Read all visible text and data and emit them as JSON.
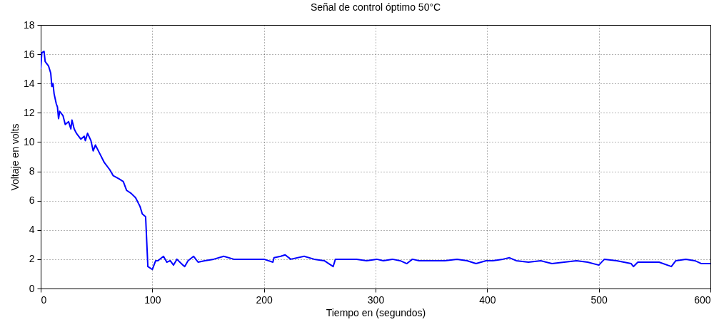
{
  "chart_data": {
    "type": "line",
    "title": "Señal de control óptimo 50°C",
    "xlabel": "Tiempo en (segundos)",
    "ylabel": "Voltaje en volts",
    "x": [
      0,
      1,
      3,
      4,
      7,
      9,
      10,
      11,
      12,
      14,
      15,
      16,
      17,
      20,
      22,
      25,
      27,
      28,
      30,
      32,
      36,
      39,
      40,
      42,
      45,
      47,
      49,
      53,
      57,
      62,
      65,
      70,
      74,
      77,
      81,
      85,
      89,
      91,
      94,
      95,
      96,
      100,
      103,
      105,
      110,
      113,
      116,
      119,
      122,
      126,
      129,
      132,
      137,
      141,
      147,
      155,
      164,
      173,
      181,
      190,
      200,
      208,
      209,
      215,
      219,
      224,
      236,
      245,
      254,
      262,
      264,
      275,
      283,
      292,
      301,
      307,
      315,
      322,
      328,
      333,
      339,
      345,
      354,
      362,
      373,
      382,
      390,
      399,
      405,
      414,
      420,
      426,
      437,
      448,
      458,
      469,
      480,
      490,
      500,
      505,
      516,
      529,
      531,
      535,
      546,
      554,
      565,
      569,
      578,
      586,
      592,
      598,
      600
    ],
    "series": [
      {
        "color": "#0000ff",
        "values": [
          15.0,
          16.1,
          16.2,
          15.5,
          15.2,
          14.7,
          13.8,
          14.0,
          13.3,
          12.6,
          12.4,
          11.6,
          12.1,
          11.8,
          11.2,
          11.4,
          10.9,
          11.5,
          10.9,
          10.6,
          10.2,
          10.4,
          10.1,
          10.6,
          10.1,
          9.4,
          9.8,
          9.2,
          8.6,
          8.1,
          7.7,
          7.5,
          7.3,
          6.7,
          6.5,
          6.2,
          5.6,
          5.1,
          4.9,
          3.2,
          1.5,
          1.3,
          1.9,
          1.9,
          2.2,
          1.8,
          1.9,
          1.6,
          2.0,
          1.7,
          1.5,
          1.9,
          2.2,
          1.8,
          1.9,
          2.0,
          2.2,
          2.0,
          2.0,
          2.0,
          2.0,
          1.8,
          2.1,
          2.2,
          2.3,
          2.0,
          2.2,
          2.0,
          1.9,
          1.5,
          2.0,
          2.0,
          2.0,
          1.9,
          2.0,
          1.9,
          2.0,
          1.9,
          1.7,
          2.0,
          1.9,
          1.9,
          1.9,
          1.9,
          2.0,
          1.9,
          1.7,
          1.9,
          1.9,
          2.0,
          2.1,
          1.9,
          1.8,
          1.9,
          1.7,
          1.8,
          1.9,
          1.8,
          1.6,
          2.0,
          1.9,
          1.7,
          1.5,
          1.8,
          1.8,
          1.8,
          1.5,
          1.9,
          2.0,
          1.9,
          1.7,
          1.7,
          1.7
        ]
      }
    ],
    "xlim": [
      0,
      600
    ],
    "xticks": [
      0,
      100,
      200,
      300,
      400,
      500,
      600
    ],
    "ylim": [
      0,
      18
    ],
    "yticks": [
      0,
      2,
      4,
      6,
      8,
      10,
      12,
      14,
      16,
      18
    ],
    "grid": true,
    "legend": false,
    "line_style": "solid"
  }
}
